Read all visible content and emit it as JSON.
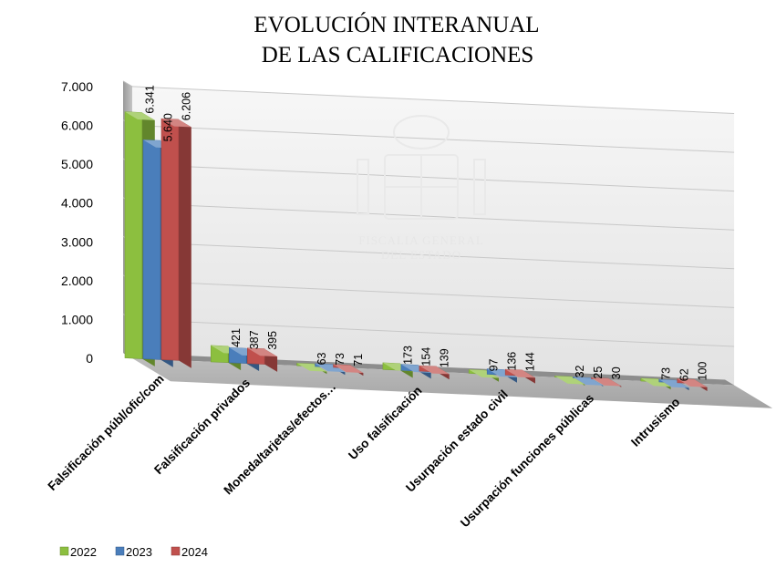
{
  "chart_data": {
    "type": "bar",
    "title": [
      "EVOLUCIÓN INTERANUAL",
      "DE LAS CALIFICACIONES"
    ],
    "categories": [
      "Falsificación públ/ofic/com",
      "Falsificación privados",
      "Moneda/tarjetas/efectos…",
      "Uso falsificación",
      "Usurpación estado civil",
      "Usurpación funciones públicas",
      "Intrusismo"
    ],
    "series": [
      {
        "name": "2022",
        "color": "#8cbf3f",
        "values": [
          6341,
          421,
          63,
          173,
          97,
          32,
          73
        ],
        "labels": [
          "6.341",
          "421",
          "63",
          "173",
          "97",
          "32",
          "73"
        ]
      },
      {
        "name": "2023",
        "color": "#4a7ebb",
        "values": [
          5640,
          387,
          73,
          154,
          136,
          25,
          62
        ],
        "labels": [
          "5.640",
          "387",
          "73",
          "154",
          "136",
          "25",
          "62"
        ]
      },
      {
        "name": "2024",
        "color": "#c0504d",
        "values": [
          6206,
          395,
          71,
          139,
          144,
          30,
          100
        ],
        "labels": [
          "6.206",
          "395",
          "71",
          "139",
          "144",
          "30",
          "100"
        ]
      }
    ],
    "ylim": [
      0,
      7000
    ],
    "yticks": [
      0,
      1000,
      2000,
      3000,
      4000,
      5000,
      6000,
      7000
    ],
    "ytick_labels": [
      "0",
      "1.000",
      "2.000",
      "3.000",
      "4.000",
      "5.000",
      "6.000",
      "7.000"
    ],
    "grid": true,
    "legend_position": "bottom-left",
    "watermark": "FISCALIA GENERAL DEL ESTADO"
  }
}
